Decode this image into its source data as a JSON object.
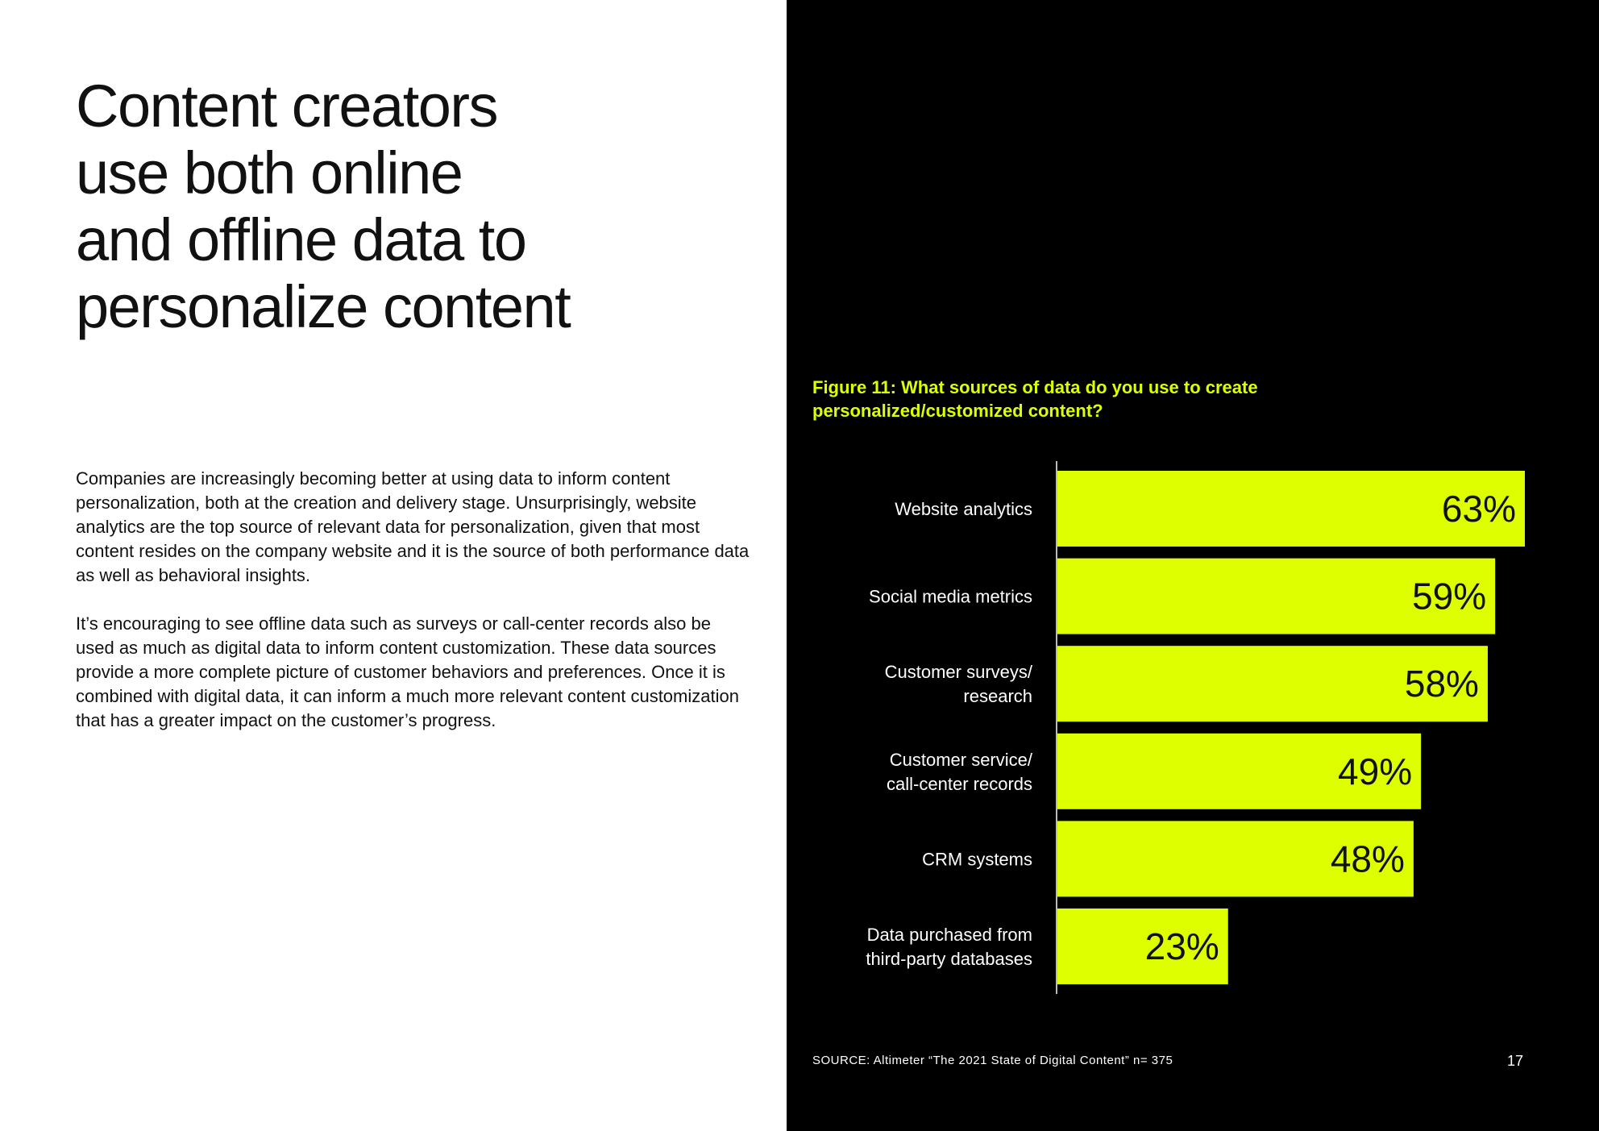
{
  "headline": [
    "Content creators",
    "use both online",
    "and offline data to",
    "personalize content"
  ],
  "paragraphs": [
    "Companies are increasingly becoming better at using data to inform content personalization, both at the creation and delivery stage. Unsurprisingly, website analytics are the top source of relevant data for personalization, given that most content resides on the company website and it is the source of both performance data as well as behavioral insights.",
    "It’s encouraging to see offline data such as surveys or call-center records also be used as much as digital data to inform content customization. These data sources provide a more complete picture of customer behaviors and preferences. Once it is combined with digital data, it can inform a much more relevant content customization that has a greater impact on the customer’s progress."
  ],
  "figure_title": "Figure 11: What sources of data do you use to create personalized/customized content?",
  "source": "SOURCE: Altimeter “The 2021 State of Digital Content” n= 375",
  "page_number": "17",
  "colors": {
    "bar": "#ddff00",
    "panel": "#000000",
    "title_accent": "#ddff00"
  },
  "chart_data": {
    "type": "bar",
    "orientation": "horizontal",
    "categories": [
      [
        "Website analytics"
      ],
      [
        "Social media metrics"
      ],
      [
        "Customer surveys/",
        "research"
      ],
      [
        "Customer service/",
        "call-center records"
      ],
      [
        "CRM systems"
      ],
      [
        "Data purchased from",
        "third-party databases"
      ]
    ],
    "values": [
      63,
      59,
      58,
      49,
      48,
      23
    ],
    "value_labels": [
      "63%",
      "59%",
      "58%",
      "49%",
      "48%",
      "23%"
    ],
    "xlim": [
      0,
      63
    ],
    "grid": false,
    "legend": "none"
  }
}
